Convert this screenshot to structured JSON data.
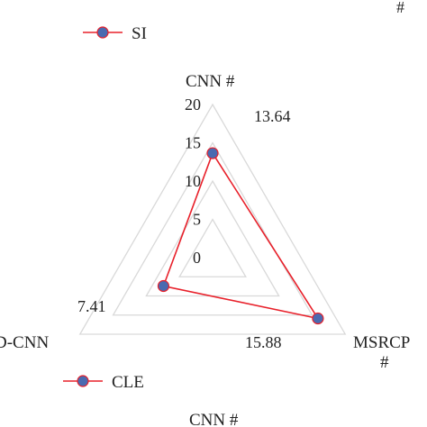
{
  "corner_mark": "#",
  "chart_data": [
    {
      "type": "radar",
      "axes": [
        "CNN #",
        "MSRCP #",
        "D-CNN"
      ],
      "series": [
        {
          "name": "SI",
          "values": [
            13.64,
            15.88,
            7.41
          ]
        }
      ],
      "data_labels": [
        "13.64",
        "15.88",
        "7.41"
      ],
      "radial_ticks": [
        "0",
        "5",
        "10",
        "15",
        "20"
      ],
      "rlim": [
        0,
        20
      ],
      "grid": true,
      "legend_position": "top-left",
      "colors": {
        "line": "#e8202a",
        "marker_fill": "#4a6ab0",
        "grid": "#d9d9d9"
      }
    },
    {
      "type": "radar",
      "axes": [
        "CNN #"
      ],
      "series": [
        {
          "name": "CLE",
          "values": []
        }
      ],
      "legend_position": "top-left",
      "colors": {
        "line": "#e8202a",
        "marker_fill": "#4a6ab0"
      }
    }
  ]
}
